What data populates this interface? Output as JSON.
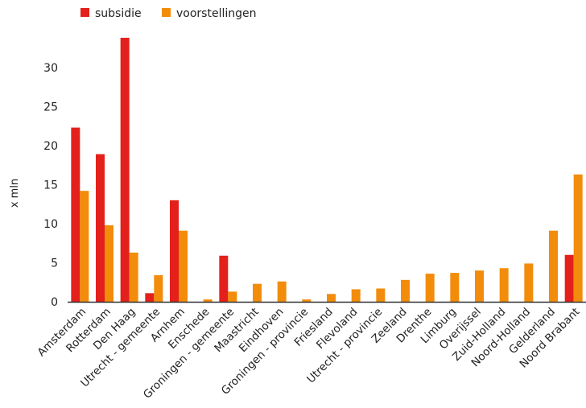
{
  "chart_data": {
    "type": "bar",
    "title": "",
    "xlabel": "",
    "ylabel": "x mln",
    "ylim": [
      0,
      34
    ],
    "yticks": [
      0,
      5,
      10,
      15,
      20,
      25,
      30
    ],
    "grid": false,
    "legend_position": "top-left",
    "categories": [
      "Amsterdam",
      "Rotterdam",
      "Den Haag",
      "Utrecht - gemeente",
      "Arnhem",
      "Enschede",
      "Groningen - gemeente",
      "Maastricht",
      "Eindhoven",
      "Groningen - provincie",
      "Friesland",
      "Flevoland",
      "Utrecht - provincie",
      "Zeeland",
      "Drenthe",
      "Limburg",
      "Overijssel",
      "Zuid-Holland",
      "Noord-Holland",
      "Gelderland",
      "Noord Brabant"
    ],
    "series": [
      {
        "name": "subsidie",
        "color": "#e3201b",
        "values": [
          22.3,
          18.9,
          33.8,
          1.1,
          13.0,
          0,
          5.9,
          0,
          0,
          0,
          0,
          0,
          0,
          0,
          0,
          0,
          0,
          0,
          0,
          0,
          6.0
        ]
      },
      {
        "name": "voorstellingen",
        "color": "#f28c0a",
        "values": [
          14.2,
          9.8,
          6.3,
          3.4,
          9.1,
          0.3,
          1.3,
          2.3,
          2.6,
          0.3,
          1.0,
          1.6,
          1.7,
          2.8,
          3.6,
          3.7,
          4.0,
          4.3,
          4.9,
          9.1,
          16.3
        ]
      }
    ]
  }
}
